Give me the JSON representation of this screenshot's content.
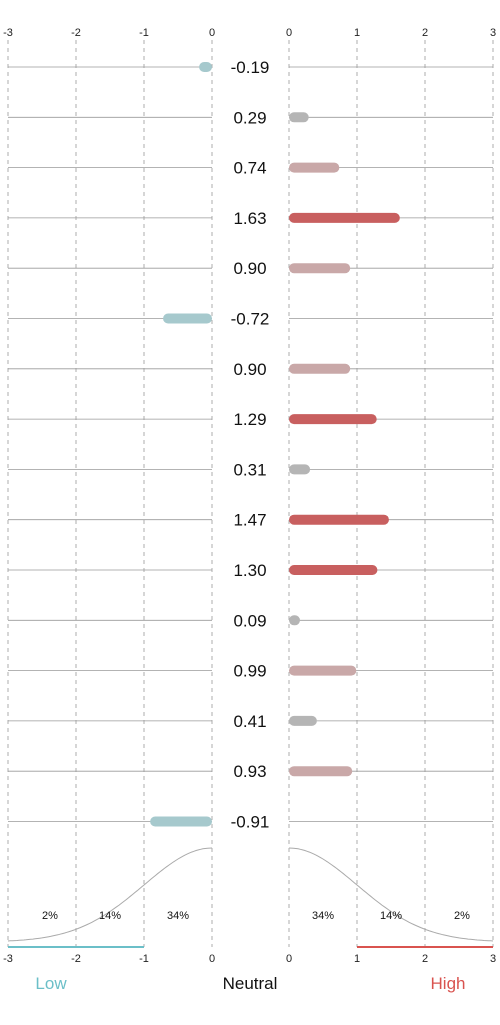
{
  "chart_data": {
    "type": "bar",
    "orientation": "horizontal",
    "layout": "diverging",
    "values": [
      -0.19,
      0.29,
      0.74,
      1.63,
      0.9,
      -0.72,
      0.9,
      1.29,
      0.31,
      1.47,
      1.3,
      0.09,
      0.99,
      0.41,
      0.93,
      -0.91
    ],
    "value_labels": [
      "-0.19",
      "0.29",
      "0.74",
      "1.63",
      "0.90",
      "-0.72",
      "0.90",
      "1.29",
      "0.31",
      "1.47",
      "1.30",
      "0.09",
      "0.99",
      "0.41",
      "0.93",
      "-0.91"
    ],
    "negative_axis": {
      "min": -3,
      "max": 0,
      "ticks": [
        -3,
        -2,
        -1,
        0
      ],
      "tick_labels": [
        "-3",
        "-2",
        "-1",
        "0"
      ]
    },
    "positive_axis": {
      "min": 0,
      "max": 3,
      "ticks": [
        0,
        1,
        2,
        3
      ],
      "tick_labels": [
        "0",
        "1",
        "2",
        "3"
      ]
    },
    "distribution_labels": {
      "left": [
        "2%",
        "14%",
        "34%"
      ],
      "right": [
        "34%",
        "14%",
        "2%"
      ]
    },
    "footer": {
      "low": "Low",
      "neutral": "Neutral",
      "high": "High"
    },
    "colors": {
      "negative": "#a6c9cd",
      "neutral": "#b5b5b5",
      "medium": "#c9a8a8",
      "high": "#c85f5f",
      "low_label": "#6bbfc8",
      "high_label": "#d9534f",
      "grid": "#9a9a9a"
    },
    "grid": true
  }
}
